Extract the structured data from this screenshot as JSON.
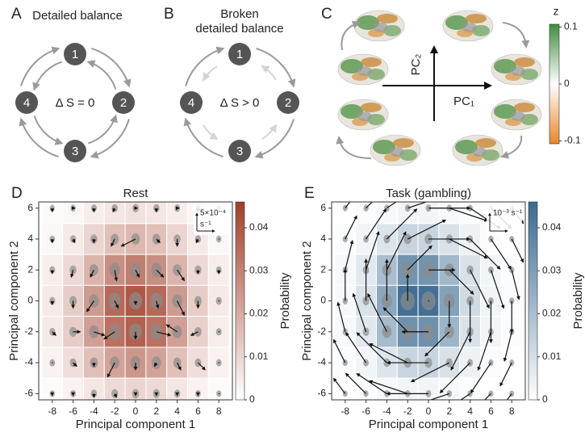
{
  "diagrams": [
    {
      "panel_label": "A",
      "title_lines": [
        "Detailed balance"
      ],
      "center_text": "Δ S = 0",
      "nodes": [
        "1",
        "2",
        "3",
        "4"
      ],
      "broken": false
    },
    {
      "panel_label": "B",
      "title_lines": [
        "Broken",
        "detailed balance"
      ],
      "center_text": "Δ S > 0",
      "nodes": [
        "1",
        "2",
        "3",
        "4"
      ],
      "broken": true
    }
  ],
  "brain_panel": {
    "panel_label": "C",
    "axis_x_label": "PC₁",
    "axis_y_label": "PC₂",
    "colorbar": {
      "label": "z",
      "lim": [
        -0.105,
        0.105
      ],
      "ticks": [
        -0.1,
        0,
        0.1
      ],
      "colors": [
        "#e8862c",
        "#ffffff",
        "#3f8c3e"
      ]
    }
  },
  "chart_data": [
    {
      "type": "heatmap",
      "panel_label": "D",
      "title": "Rest",
      "xlabel": "Principal component 1",
      "ylabel": "Principal component 2",
      "xlim": [
        -9.3,
        9.3
      ],
      "ylim": [
        -6.4,
        6.4
      ],
      "xticks": [
        -8,
        -6,
        -4,
        -2,
        0,
        2,
        4,
        6,
        8
      ],
      "yticks": [
        -6,
        -4,
        -2,
        0,
        2,
        4,
        6
      ],
      "x_centers": [
        -8,
        -6,
        -4,
        -2,
        0,
        2,
        4,
        6,
        8
      ],
      "y_centers": [
        6,
        4,
        2,
        0,
        -2,
        -4,
        -6
      ],
      "values": [
        [
          0.001,
          0.002,
          0.004,
          0.006,
          0.007,
          0.006,
          0.004,
          0.002,
          0.001
        ],
        [
          0.002,
          0.005,
          0.01,
          0.015,
          0.017,
          0.015,
          0.01,
          0.005,
          0.002
        ],
        [
          0.004,
          0.009,
          0.018,
          0.027,
          0.031,
          0.027,
          0.018,
          0.009,
          0.004
        ],
        [
          0.005,
          0.012,
          0.024,
          0.036,
          0.04,
          0.036,
          0.024,
          0.012,
          0.005
        ],
        [
          0.005,
          0.012,
          0.023,
          0.034,
          0.038,
          0.034,
          0.023,
          0.011,
          0.004
        ],
        [
          0.003,
          0.008,
          0.015,
          0.022,
          0.025,
          0.022,
          0.015,
          0.008,
          0.003
        ],
        [
          0.001,
          0.003,
          0.006,
          0.009,
          0.01,
          0.009,
          0.006,
          0.003,
          0.001
        ]
      ],
      "color": "#a23f2a",
      "colorbar": {
        "label": "Probability",
        "lim": [
          0,
          0.046
        ],
        "ticks": [
          0,
          0.01,
          0.02,
          0.03,
          0.04
        ]
      },
      "vectors": {
        "color": "#111111",
        "u": [
          [
            0,
            5e-05,
            0,
            -5e-05,
            5e-05,
            0,
            5e-05,
            0,
            0
          ],
          [
            0,
            5e-05,
            0,
            -0.0001,
            -0.0004,
            0.0001,
            0,
            -5e-05,
            0
          ],
          [
            0,
            -5e-05,
            -0.0001,
            5e-05,
            0.0001,
            0.0002,
            0.0002,
            0,
            0
          ],
          [
            0,
            0,
            -0.0002,
            0.0001,
            0,
            5e-05,
            0.0002,
            0,
            0
          ],
          [
            0.0001,
            0.0002,
            0.0003,
            -0.0003,
            0,
            0.0004,
            -0.0003,
            -0.0002,
            0
          ],
          [
            0,
            0.0001,
            0,
            -0.0002,
            0,
            -5e-05,
            0.0001,
            0.0002,
            0
          ],
          [
            0,
            0,
            0,
            5e-05,
            0,
            0,
            0,
            0,
            0
          ]
        ],
        "v": [
          [
            -0.0001,
            0,
            -0.0001,
            -0.0001,
            0,
            -0.0001,
            0,
            -0.0001,
            0
          ],
          [
            -0.0001,
            -0.0001,
            -0.0001,
            -0.0002,
            -0.0002,
            -0.0001,
            -0.0002,
            -0.0001,
            0
          ],
          [
            -0.0001,
            -0.0002,
            -0.0002,
            -0.0003,
            -0.0002,
            -0.0002,
            -0.0003,
            -0.0001,
            -0.0001
          ],
          [
            -0.0001,
            -0.0002,
            -0.0003,
            -0.0002,
            -0.0001,
            -0.0002,
            -0.0004,
            -0.0002,
            0
          ],
          [
            -0.0001,
            0,
            -0.0001,
            -0.0002,
            -0.0002,
            -0.0001,
            0.0002,
            -0.0001,
            0
          ],
          [
            0,
            -0.0001,
            -0.0001,
            -0.0004,
            -0.0002,
            -0.0001,
            -0.0002,
            -0.0002,
            0
          ],
          [
            -5e-05,
            -5e-05,
            -0.0001,
            -0.0001,
            -5e-05,
            -5e-05,
            -5e-05,
            -5e-05,
            0
          ]
        ],
        "scale_bar": {
          "value": 0.0005,
          "label_lines": [
            "5×10⁻⁴",
            "s⁻¹"
          ]
        }
      }
    },
    {
      "type": "heatmap",
      "panel_label": "E",
      "title": "Task (gambling)",
      "xlabel": "Principal component 1",
      "ylabel": "Principal component 2",
      "xlim": [
        -9.3,
        9.3
      ],
      "ylim": [
        -6.4,
        6.4
      ],
      "xticks": [
        -8,
        -6,
        -4,
        -2,
        0,
        2,
        4,
        6,
        8
      ],
      "yticks": [
        -6,
        -4,
        -2,
        0,
        2,
        4,
        6
      ],
      "x_centers": [
        -8,
        -6,
        -4,
        -2,
        0,
        2,
        4,
        6,
        8
      ],
      "y_centers": [
        6,
        4,
        2,
        0,
        -2,
        -4,
        -6
      ],
      "values": [
        [
          0,
          0.001,
          0.002,
          0.003,
          0.003,
          0.002,
          0.001,
          0,
          0
        ],
        [
          0.001,
          0.003,
          0.008,
          0.013,
          0.013,
          0.009,
          0.004,
          0.001,
          0
        ],
        [
          0.002,
          0.007,
          0.02,
          0.033,
          0.033,
          0.022,
          0.009,
          0.003,
          0.001
        ],
        [
          0.002,
          0.009,
          0.027,
          0.044,
          0.044,
          0.029,
          0.011,
          0.003,
          0.001
        ],
        [
          0.002,
          0.007,
          0.021,
          0.034,
          0.034,
          0.023,
          0.009,
          0.003,
          0.001
        ],
        [
          0.001,
          0.003,
          0.008,
          0.013,
          0.013,
          0.009,
          0.004,
          0.001,
          0
        ],
        [
          0,
          0.001,
          0.002,
          0.003,
          0.003,
          0.002,
          0.001,
          0,
          0
        ]
      ],
      "color": "#3b6a90",
      "colorbar": {
        "label": "Probability",
        "lim": [
          0,
          0.046
        ],
        "ticks": [
          0,
          0.01,
          0.02,
          0.03,
          0.04
        ]
      },
      "vectors": {
        "color": "#111111",
        "u": [
          [
            0.00065,
            0.00114,
            0.00169,
            0.00215,
            0.00234,
            0.00215,
            0.00169,
            0.00114,
            0.00065
          ],
          [
            0.00065,
            0.00113,
            0.00169,
            0.00214,
            0.00232,
            0.00214,
            0.00169,
            0.00113,
            0.00065
          ],
          [
            0.00041,
            0.00072,
            0.00107,
            0.00136,
            0.00148,
            0.00136,
            0.00107,
            0.00072,
            0.00041
          ],
          [
            0,
            0,
            0,
            0,
            0,
            0,
            0,
            0,
            0
          ],
          [
            -0.00041,
            -0.00072,
            -0.00107,
            -0.00136,
            -0.00148,
            -0.00136,
            -0.00107,
            -0.00072,
            -0.00041
          ],
          [
            -0.00065,
            -0.00113,
            -0.00169,
            -0.00214,
            -0.00232,
            -0.00214,
            -0.00169,
            -0.00113,
            -0.00065
          ],
          [
            -0.00065,
            -0.00114,
            -0.00169,
            -0.00215,
            -0.00234,
            -0.00215,
            -0.00169,
            -0.00114,
            -0.00065
          ]
        ],
        "v": [
          [
            0.00086,
            0.00114,
            0.00113,
            0.00072,
            0,
            -0.00072,
            -0.00113,
            -0.00114,
            -0.00086
          ],
          [
            0.0013,
            0.00169,
            0.00169,
            0.00107,
            0,
            -0.00107,
            -0.00169,
            -0.00169,
            -0.0013
          ],
          [
            0.00165,
            0.00215,
            0.00214,
            0.00136,
            0,
            -0.00136,
            -0.00214,
            -0.00215,
            -0.00165
          ],
          [
            0.00178,
            0.00234,
            0.00232,
            0.00148,
            0,
            -0.00148,
            -0.00232,
            -0.00234,
            -0.00178
          ],
          [
            0.00165,
            0.00215,
            0.00214,
            0.00136,
            0,
            -0.00136,
            -0.00214,
            -0.00215,
            -0.00165
          ],
          [
            0.0013,
            0.00169,
            0.00169,
            0.00107,
            0,
            -0.00107,
            -0.00169,
            -0.00169,
            -0.0013
          ],
          [
            0.00086,
            0.00114,
            0.00113,
            0.00072,
            0,
            -0.00072,
            -0.00113,
            -0.00114,
            -0.00086
          ]
        ],
        "scale_bar": {
          "value": 0.001,
          "label_lines": [
            "10⁻³ s⁻¹"
          ]
        }
      }
    }
  ]
}
